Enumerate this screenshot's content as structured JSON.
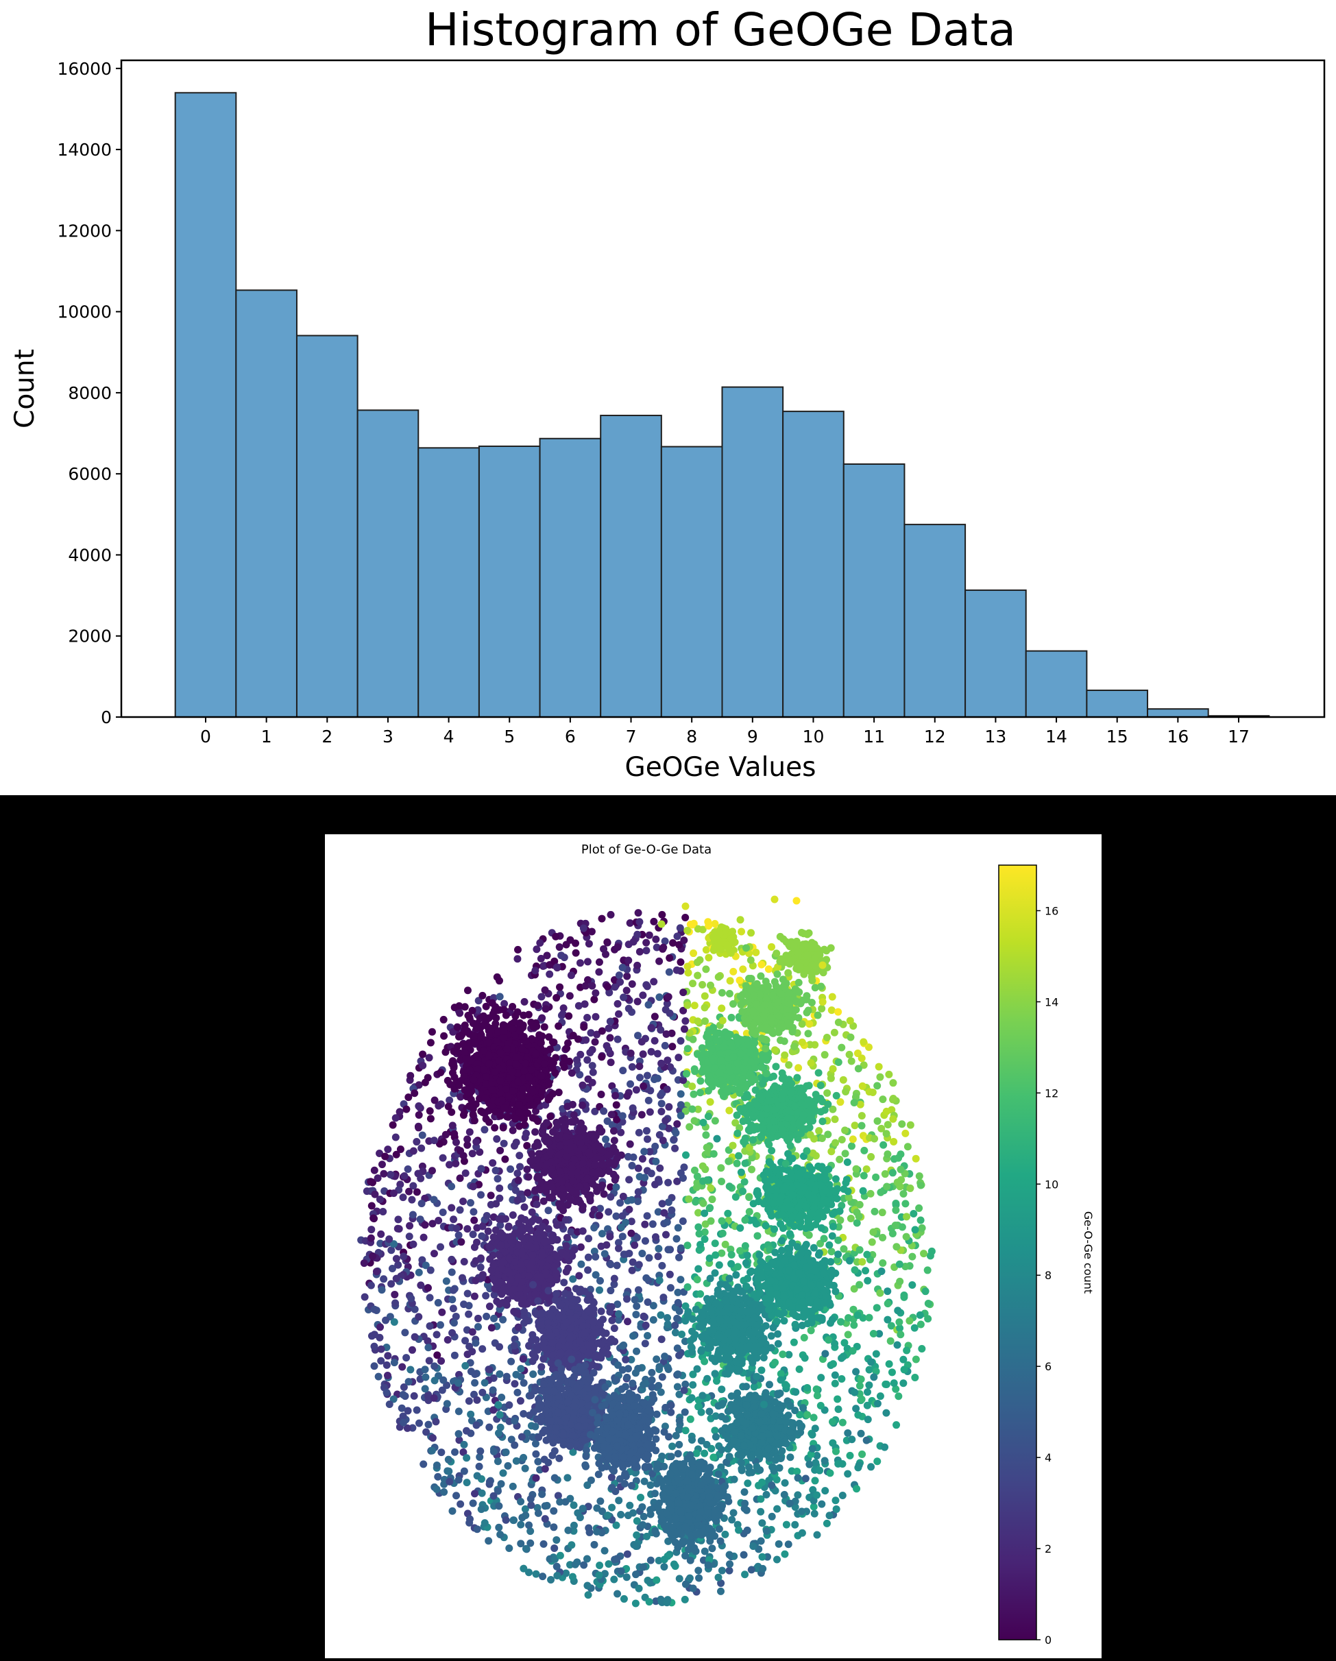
{
  "chart_data": [
    {
      "type": "bar",
      "title": "Histogram of GeOGe Data",
      "xlabel": "GeOGe Values",
      "ylabel": "Count",
      "categories": [
        "0",
        "1",
        "2",
        "3",
        "4",
        "5",
        "6",
        "7",
        "8",
        "9",
        "10",
        "11",
        "12",
        "13",
        "14",
        "15",
        "16",
        "17"
      ],
      "values": [
        15400,
        10530,
        9410,
        7570,
        6640,
        6680,
        6870,
        7440,
        6670,
        8140,
        7540,
        6240,
        4750,
        3130,
        1630,
        660,
        200,
        30
      ],
      "ylim": [
        0,
        16200
      ],
      "yticks": [
        0,
        2000,
        4000,
        6000,
        8000,
        10000,
        12000,
        14000,
        16000
      ],
      "grid": false,
      "bar_color": "#63a0cb",
      "edge_color": "#1f1f1f"
    },
    {
      "type": "scatter",
      "title": "Plot of Ge-O-Ge Data",
      "colorbar_label": "Ge-O-Ge count",
      "colormap": "viridis",
      "color_range": [
        0,
        17
      ],
      "colorbar_ticks": [
        0,
        2,
        4,
        6,
        8,
        10,
        12,
        14,
        16
      ],
      "axes_visible": false,
      "clusters": [
        {
          "value": 0,
          "cx": 738,
          "cy": 1558,
          "rx": 72,
          "ry": 78
        },
        {
          "value": 1,
          "cx": 833,
          "cy": 1697,
          "rx": 58,
          "ry": 62
        },
        {
          "value": 2,
          "cx": 767,
          "cy": 1844,
          "rx": 58,
          "ry": 62
        },
        {
          "value": 3,
          "cx": 833,
          "cy": 1944,
          "rx": 55,
          "ry": 58
        },
        {
          "value": 4,
          "cx": 829,
          "cy": 2057,
          "rx": 52,
          "ry": 56
        },
        {
          "value": 5,
          "cx": 915,
          "cy": 2091,
          "rx": 44,
          "ry": 62
        },
        {
          "value": 6,
          "cx": 1006,
          "cy": 2191,
          "rx": 50,
          "ry": 62
        },
        {
          "value": 7,
          "cx": 1108,
          "cy": 2083,
          "rx": 52,
          "ry": 56
        },
        {
          "value": 8,
          "cx": 1068,
          "cy": 1937,
          "rx": 54,
          "ry": 58
        },
        {
          "value": 9,
          "cx": 1163,
          "cy": 1872,
          "rx": 56,
          "ry": 54
        },
        {
          "value": 10,
          "cx": 1165,
          "cy": 1744,
          "rx": 56,
          "ry": 50
        },
        {
          "value": 11,
          "cx": 1137,
          "cy": 1620,
          "rx": 56,
          "ry": 48
        },
        {
          "value": 12,
          "cx": 1065,
          "cy": 1548,
          "rx": 48,
          "ry": 46
        },
        {
          "value": 13,
          "cx": 1126,
          "cy": 1470,
          "rx": 50,
          "ry": 40
        },
        {
          "value": 14,
          "cx": 1173,
          "cy": 1393,
          "rx": 32,
          "ry": 30
        },
        {
          "value": 15,
          "cx": 1057,
          "cy": 1369,
          "rx": 20,
          "ry": 20
        }
      ]
    }
  ]
}
